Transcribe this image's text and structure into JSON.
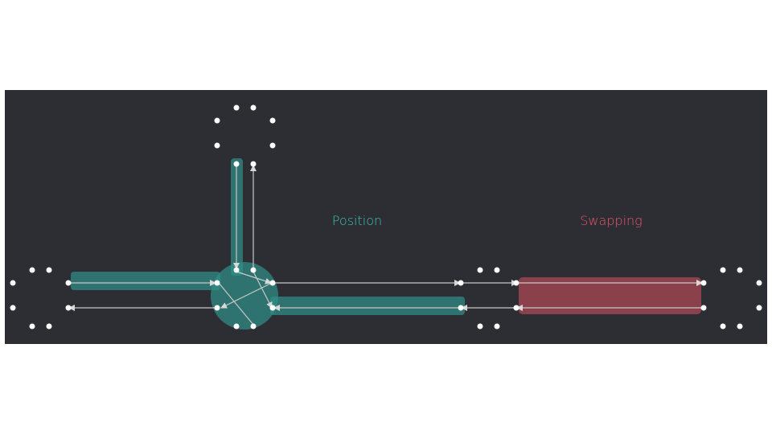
{
  "labels": {
    "position": "Position",
    "swapping": "Swapping"
  },
  "colors": {
    "panel_background": "#2c2e33",
    "page_background": "#ffffff",
    "position_highlight": "#2f8f86",
    "swapping_highlight": "#9b4450",
    "position_text": "#3fc3b3",
    "swapping_text": "#e8566a",
    "node": "#ffffff",
    "link": "#c8c8c8"
  }
}
